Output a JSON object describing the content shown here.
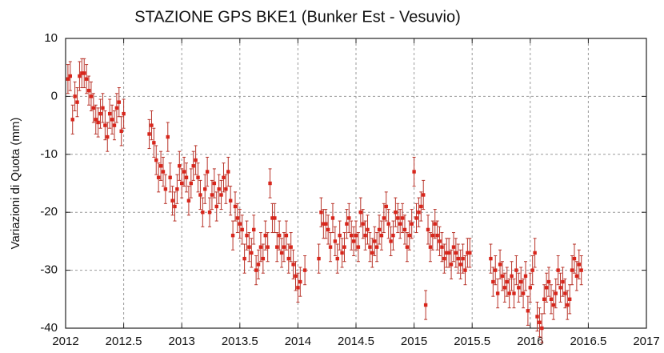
{
  "chart_data": {
    "type": "scatter",
    "title": "STAZIONE GPS BKE1 (Bunker Est - Vesuvio)",
    "y_label": "Variazioni di Quota (mm)",
    "color": "#d8261c",
    "error_color": "#b8342a",
    "error": 2.5,
    "grid": true,
    "xlim": [
      2012,
      2017
    ],
    "xticks": [
      2012,
      2012.5,
      2013,
      2013.5,
      2014,
      2014.5,
      2015,
      2015.5,
      2016,
      2016.5,
      2017
    ],
    "ylim": [
      -40,
      10
    ],
    "yticks": [
      -40,
      -30,
      -20,
      -10,
      0,
      10
    ],
    "x": [
      2012.02,
      2012.04,
      2012.06,
      2012.08,
      2012.1,
      2012.12,
      2012.14,
      2012.16,
      2012.18,
      2012.2,
      2012.22,
      2012.24,
      2012.26,
      2012.28,
      2012.3,
      2012.32,
      2012.34,
      2012.36,
      2012.38,
      2012.4,
      2012.42,
      2012.44,
      2012.46,
      2012.48,
      2012.5,
      2012.72,
      2012.74,
      2012.76,
      2012.78,
      2012.8,
      2012.82,
      2012.84,
      2012.86,
      2012.88,
      2012.9,
      2012.92,
      2012.94,
      2012.96,
      2012.98,
      2013.0,
      2013.02,
      2013.04,
      2013.06,
      2013.08,
      2013.1,
      2013.12,
      2013.14,
      2013.16,
      2013.18,
      2013.2,
      2013.22,
      2013.24,
      2013.26,
      2013.28,
      2013.3,
      2013.32,
      2013.34,
      2013.36,
      2013.38,
      2013.4,
      2013.42,
      2013.44,
      2013.46,
      2013.48,
      2013.5,
      2013.52,
      2013.54,
      2013.56,
      2013.58,
      2013.6,
      2013.62,
      2013.64,
      2013.66,
      2013.68,
      2013.7,
      2013.72,
      2013.74,
      2013.76,
      2013.78,
      2013.8,
      2013.82,
      2013.84,
      2013.86,
      2013.88,
      2013.9,
      2013.92,
      2013.94,
      2013.96,
      2013.98,
      2014.0,
      2014.02,
      2014.06,
      2014.18,
      2014.2,
      2014.22,
      2014.24,
      2014.26,
      2014.28,
      2014.3,
      2014.32,
      2014.34,
      2014.36,
      2014.38,
      2014.4,
      2014.42,
      2014.44,
      2014.46,
      2014.48,
      2014.5,
      2014.52,
      2014.54,
      2014.56,
      2014.58,
      2014.6,
      2014.62,
      2014.64,
      2014.66,
      2014.68,
      2014.7,
      2014.72,
      2014.74,
      2014.76,
      2014.78,
      2014.8,
      2014.82,
      2014.84,
      2014.86,
      2014.88,
      2014.9,
      2014.92,
      2014.94,
      2014.96,
      2014.98,
      2015.0,
      2015.02,
      2015.04,
      2015.06,
      2015.08,
      2015.1,
      2015.12,
      2015.14,
      2015.16,
      2015.18,
      2015.2,
      2015.22,
      2015.24,
      2015.26,
      2015.28,
      2015.3,
      2015.32,
      2015.34,
      2015.36,
      2015.38,
      2015.4,
      2015.42,
      2015.44,
      2015.46,
      2015.48,
      2015.66,
      2015.68,
      2015.7,
      2015.72,
      2015.74,
      2015.76,
      2015.78,
      2015.8,
      2015.82,
      2015.84,
      2015.86,
      2015.88,
      2015.9,
      2015.92,
      2015.94,
      2015.96,
      2015.98,
      2016.0,
      2016.02,
      2016.04,
      2016.06,
      2016.08,
      2016.1,
      2016.12,
      2016.14,
      2016.16,
      2016.18,
      2016.2,
      2016.22,
      2016.24,
      2016.26,
      2016.28,
      2016.3,
      2016.32,
      2016.34,
      2016.36,
      2016.38,
      2016.4,
      2016.42,
      2016.44
    ],
    "values": [
      3,
      3.5,
      -4,
      0,
      -1,
      3.5,
      4,
      4,
      3,
      1,
      0,
      -2,
      -4,
      -4.5,
      -3,
      -2,
      -5,
      -7,
      -3,
      -4,
      -5,
      -2,
      -1,
      -6,
      -3,
      -6.5,
      -5,
      -8,
      -11,
      -14,
      -12,
      -13,
      -16,
      -7,
      -14,
      -18,
      -19,
      -16,
      -12,
      -15,
      -13,
      -14,
      -18,
      -15,
      -12,
      -11,
      -14,
      -17,
      -20,
      -16,
      -13,
      -20,
      -17,
      -15,
      -19,
      -16,
      -17,
      -14,
      -16,
      -13,
      -18,
      -24,
      -19,
      -21,
      -22,
      -23,
      -28,
      -24,
      -26,
      -27,
      -23,
      -30,
      -29,
      -26,
      -28,
      -24,
      -26,
      -15,
      -21,
      -21,
      -26,
      -24,
      -27,
      -26,
      -24,
      -28,
      -26,
      -29,
      -31,
      -33,
      -32,
      -30,
      -28,
      -20,
      -22,
      -22,
      -23,
      -26,
      -21,
      -25,
      -28,
      -24,
      -27,
      -26,
      -22,
      -21,
      -24,
      -25,
      -24,
      -26,
      -20,
      -22,
      -24,
      -23,
      -26,
      -27,
      -25,
      -26,
      -23,
      -24,
      -21,
      -19,
      -22,
      -25,
      -24,
      -20,
      -21,
      -22,
      -21,
      -23,
      -26,
      -24,
      -22,
      -13,
      -21,
      -20,
      -19,
      -17,
      -36,
      -23,
      -26,
      -24,
      -22,
      -24,
      -25,
      -26,
      -28,
      -27,
      -27,
      -29,
      -26,
      -27,
      -28,
      -29,
      -28,
      -30,
      -27,
      -27,
      -28,
      -32,
      -30,
      -34,
      -29,
      -31,
      -33,
      -32,
      -34,
      -31,
      -34,
      -30,
      -33,
      -32,
      -34,
      -31,
      -37,
      -33,
      -30,
      -27,
      -38,
      -39,
      -40,
      -35,
      -33,
      -32,
      -35,
      -36,
      -34,
      -30,
      -33,
      -32,
      -34,
      -36,
      -35,
      -30,
      -28,
      -31,
      -29,
      -30
    ]
  }
}
